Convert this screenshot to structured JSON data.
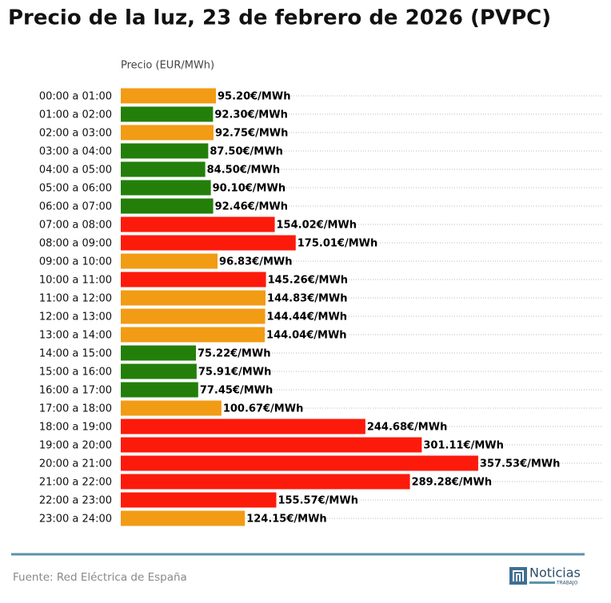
{
  "chart_data": {
    "type": "barh",
    "title": "Precio de la luz, 23 de febrero de 2026 (PVPC)",
    "xlabel": "Precio (EUR/MWh)",
    "categories": [
      "00:00 a 01:00",
      "01:00 a 02:00",
      "02:00 a 03:00",
      "03:00 a 04:00",
      "04:00 a 05:00",
      "05:00 a 06:00",
      "06:00 a 07:00",
      "07:00 a 08:00",
      "08:00 a 09:00",
      "09:00 a 10:00",
      "10:00 a 11:00",
      "11:00 a 12:00",
      "12:00 a 13:00",
      "13:00 a 14:00",
      "14:00 a 15:00",
      "15:00 a 16:00",
      "16:00 a 17:00",
      "17:00 a 18:00",
      "18:00 a 19:00",
      "19:00 a 20:00",
      "20:00 a 21:00",
      "21:00 a 22:00",
      "22:00 a 23:00",
      "23:00 a 24:00"
    ],
    "values": [
      95.2,
      92.3,
      92.75,
      87.5,
      84.5,
      90.1,
      92.46,
      154.02,
      175.01,
      96.83,
      145.26,
      144.83,
      144.44,
      144.04,
      75.22,
      75.91,
      77.45,
      100.67,
      244.68,
      301.11,
      357.53,
      289.28,
      155.57,
      124.15
    ],
    "value_labels": [
      "95.20€/MWh",
      "92.30€/MWh",
      "92.75€/MWh",
      "87.50€/MWh",
      "84.50€/MWh",
      "90.10€/MWh",
      "92.46€/MWh",
      "154.02€/MWh",
      "175.01€/MWh",
      "96.83€/MWh",
      "145.26€/MWh",
      "144.83€/MWh",
      "144.44€/MWh",
      "144.04€/MWh",
      "75.22€/MWh",
      "75.91€/MWh",
      "77.45€/MWh",
      "100.67€/MWh",
      "244.68€/MWh",
      "301.11€/MWh",
      "357.53€/MWh",
      "289.28€/MWh",
      "155.57€/MWh",
      "124.15€/MWh"
    ],
    "colors": [
      "#f29b14",
      "#237f0a",
      "#f29b14",
      "#237f0a",
      "#237f0a",
      "#237f0a",
      "#237f0a",
      "#fc1a0b",
      "#fc1a0b",
      "#f29b14",
      "#fc1a0b",
      "#f29b14",
      "#f29b14",
      "#f29b14",
      "#237f0a",
      "#237f0a",
      "#237f0a",
      "#f29b14",
      "#fc1a0b",
      "#fc1a0b",
      "#fc1a0b",
      "#fc1a0b",
      "#fc1a0b",
      "#f29b14"
    ],
    "xlim": [
      0,
      480
    ],
    "grid": true
  },
  "footer": {
    "source": "Fuente: Red Eléctrica de España",
    "logo_name": "Noticias",
    "logo_sub": "TRABAJO"
  }
}
